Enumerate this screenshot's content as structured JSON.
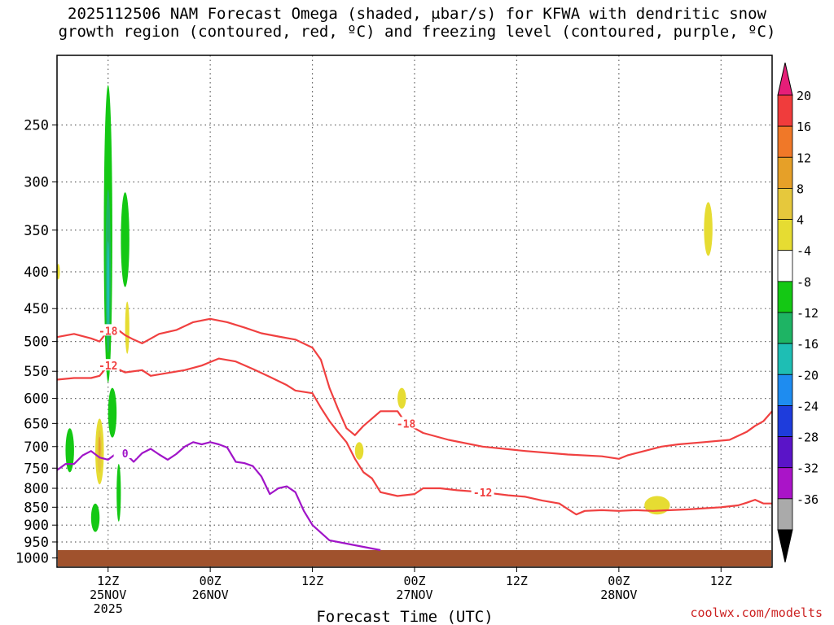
{
  "title": {
    "line1": "2025112506 NAM Forecast Omega (shaded, μbar/s) for KFWA with dendritic snow",
    "line2": "growth region (contoured, red, ºC) and freezing level (contoured, purple, ºC)"
  },
  "footer": "coolwx.com/modelts",
  "chart_data": {
    "type": "time-height contour",
    "xlabel": "Forecast Time (UTC)",
    "x_range_hours": [
      0,
      84
    ],
    "x_ticks": [
      {
        "hour": 6,
        "label": "12Z",
        "label2": "25NOV",
        "label3": "2025"
      },
      {
        "hour": 18,
        "label": "00Z",
        "label2": "26NOV",
        "label3": ""
      },
      {
        "hour": 30,
        "label": "12Z",
        "label2": "",
        "label3": ""
      },
      {
        "hour": 42,
        "label": "00Z",
        "label2": "27NOV",
        "label3": ""
      },
      {
        "hour": 54,
        "label": "12Z",
        "label2": "",
        "label3": ""
      },
      {
        "hour": 66,
        "label": "00Z",
        "label2": "28NOV",
        "label3": ""
      },
      {
        "hour": 78,
        "label": "12Z",
        "label2": "",
        "label3": ""
      }
    ],
    "y_scale": "log pressure (hPa)",
    "y_range": [
      200,
      1030
    ],
    "y_ticks": [
      250,
      300,
      350,
      400,
      450,
      500,
      550,
      600,
      650,
      700,
      750,
      800,
      850,
      900,
      950,
      1000
    ],
    "grid": true,
    "colorbar": {
      "unit": "μbar/s",
      "levels": [
        20,
        16,
        12,
        8,
        4,
        -4,
        -8,
        -12,
        -16,
        -20,
        -24,
        -28,
        -32,
        -36
      ],
      "colors": [
        "#f03c3c",
        "#f07828",
        "#e6a028",
        "#e6c83c",
        "#e6dc32",
        "#ffffff",
        "#14c814",
        "#1eb464",
        "#1ebeb4",
        "#1e8cf0",
        "#1e3cdc",
        "#5a14c8",
        "#aa14c8",
        "#aaaaaa"
      ],
      "top_color": "#e61e78",
      "bottom_color": "#000000"
    },
    "series": [
      {
        "name": "-18",
        "kind": "isotherm",
        "color": "#f04040",
        "points": [
          [
            0,
            493
          ],
          [
            2,
            488
          ],
          [
            4,
            495
          ],
          [
            5,
            500
          ],
          [
            6,
            483
          ],
          [
            7,
            480
          ],
          [
            8,
            490
          ],
          [
            9,
            497
          ],
          [
            10,
            503
          ],
          [
            12,
            488
          ],
          [
            14,
            482
          ],
          [
            16,
            470
          ],
          [
            18,
            465
          ],
          [
            20,
            470
          ],
          [
            22,
            478
          ],
          [
            24,
            487
          ],
          [
            26,
            492
          ],
          [
            28,
            497
          ],
          [
            30,
            510
          ],
          [
            31,
            530
          ],
          [
            32,
            580
          ],
          [
            33,
            620
          ],
          [
            34,
            660
          ],
          [
            35,
            675
          ],
          [
            36,
            655
          ],
          [
            38,
            625
          ],
          [
            40,
            625
          ],
          [
            41,
            650
          ],
          [
            43,
            670
          ],
          [
            46,
            685
          ],
          [
            50,
            700
          ],
          [
            55,
            710
          ],
          [
            60,
            718
          ],
          [
            64,
            722
          ],
          [
            66,
            728
          ],
          [
            67,
            720
          ],
          [
            69,
            710
          ],
          [
            71,
            700
          ],
          [
            73,
            695
          ],
          [
            76,
            690
          ],
          [
            79,
            685
          ],
          [
            81,
            668
          ],
          [
            82,
            655
          ],
          [
            83,
            645
          ],
          [
            84,
            625
          ]
        ]
      },
      {
        "name": "-12",
        "kind": "isotherm",
        "color": "#f04040",
        "points": [
          [
            0,
            565
          ],
          [
            2,
            562
          ],
          [
            4,
            562
          ],
          [
            5,
            558
          ],
          [
            6,
            540
          ],
          [
            7,
            545
          ],
          [
            8,
            552
          ],
          [
            10,
            548
          ],
          [
            11,
            558
          ],
          [
            13,
            553
          ],
          [
            15,
            548
          ],
          [
            17,
            540
          ],
          [
            19,
            528
          ],
          [
            21,
            533
          ],
          [
            23,
            546
          ],
          [
            25,
            560
          ],
          [
            27,
            575
          ],
          [
            28,
            585
          ],
          [
            30,
            590
          ],
          [
            31,
            618
          ],
          [
            32,
            645
          ],
          [
            33,
            668
          ],
          [
            34,
            690
          ],
          [
            35,
            728
          ],
          [
            36,
            760
          ],
          [
            37,
            775
          ],
          [
            38,
            810
          ],
          [
            40,
            820
          ],
          [
            42,
            815
          ],
          [
            43,
            800
          ],
          [
            45,
            800
          ],
          [
            47,
            805
          ],
          [
            50,
            810
          ],
          [
            53,
            818
          ],
          [
            55,
            822
          ],
          [
            57,
            832
          ],
          [
            59,
            840
          ],
          [
            60,
            855
          ],
          [
            61,
            870
          ],
          [
            62,
            860
          ],
          [
            64,
            858
          ],
          [
            66,
            860
          ],
          [
            68,
            858
          ],
          [
            70,
            860
          ],
          [
            72,
            858
          ],
          [
            74,
            856
          ],
          [
            76,
            853
          ],
          [
            78,
            850
          ],
          [
            80,
            845
          ],
          [
            81,
            838
          ],
          [
            82,
            830
          ],
          [
            83,
            840
          ],
          [
            84,
            840
          ]
        ]
      },
      {
        "name": "0",
        "kind": "freezing",
        "color": "#a014c8",
        "points": [
          [
            0,
            755
          ],
          [
            1,
            740
          ],
          [
            2,
            740
          ],
          [
            3,
            720
          ],
          [
            4,
            710
          ],
          [
            5,
            725
          ],
          [
            6,
            730
          ],
          [
            7,
            715
          ],
          [
            8,
            715
          ],
          [
            9,
            735
          ],
          [
            10,
            715
          ],
          [
            11,
            705
          ],
          [
            12,
            718
          ],
          [
            13,
            730
          ],
          [
            14,
            717
          ],
          [
            15,
            700
          ],
          [
            16,
            690
          ],
          [
            17,
            695
          ],
          [
            18,
            690
          ],
          [
            19,
            695
          ],
          [
            20,
            702
          ],
          [
            21,
            735
          ],
          [
            22,
            738
          ],
          [
            23,
            745
          ],
          [
            24,
            770
          ],
          [
            25,
            815
          ],
          [
            26,
            800
          ],
          [
            27,
            795
          ],
          [
            28,
            810
          ],
          [
            29,
            860
          ],
          [
            30,
            900
          ],
          [
            32,
            945
          ],
          [
            35,
            960
          ],
          [
            37,
            970
          ],
          [
            38,
            975
          ]
        ]
      }
    ],
    "omega_areas": [
      {
        "sign": "negative",
        "max_level": -16,
        "hours": [
          5.5,
          6.5
        ],
        "pressure": [
          220,
          570
        ]
      },
      {
        "sign": "negative",
        "max_level": -8,
        "hours": [
          7.5,
          8.5
        ],
        "pressure": [
          310,
          420
        ]
      },
      {
        "sign": "negative",
        "max_level": -8,
        "hours": [
          6,
          7
        ],
        "pressure": [
          580,
          680
        ]
      },
      {
        "sign": "negative",
        "max_level": -8,
        "hours": [
          1,
          2
        ],
        "pressure": [
          660,
          760
        ]
      },
      {
        "sign": "negative",
        "max_level": -8,
        "hours": [
          4,
          5
        ],
        "pressure": [
          840,
          920
        ]
      },
      {
        "sign": "negative",
        "max_level": -8,
        "hours": [
          7,
          7.5
        ],
        "pressure": [
          740,
          890
        ]
      },
      {
        "sign": "positive",
        "max_level": 8,
        "hours": [
          4.5,
          5.5
        ],
        "pressure": [
          640,
          790
        ]
      },
      {
        "sign": "positive",
        "max_level": 4,
        "hours": [
          8,
          8.5
        ],
        "pressure": [
          440,
          520
        ]
      },
      {
        "sign": "positive",
        "max_level": 4,
        "hours": [
          40,
          41
        ],
        "pressure": [
          580,
          620
        ]
      },
      {
        "sign": "positive",
        "max_level": 4,
        "hours": [
          35,
          36
        ],
        "pressure": [
          690,
          730
        ]
      },
      {
        "sign": "positive",
        "max_level": 4,
        "hours": [
          69,
          72
        ],
        "pressure": [
          820,
          870
        ]
      },
      {
        "sign": "positive",
        "max_level": 4,
        "hours": [
          76,
          77
        ],
        "pressure": [
          320,
          380
        ]
      },
      {
        "sign": "positive",
        "max_level": 4,
        "hours": [
          0,
          0.3
        ],
        "pressure": [
          390,
          410
        ]
      }
    ]
  }
}
